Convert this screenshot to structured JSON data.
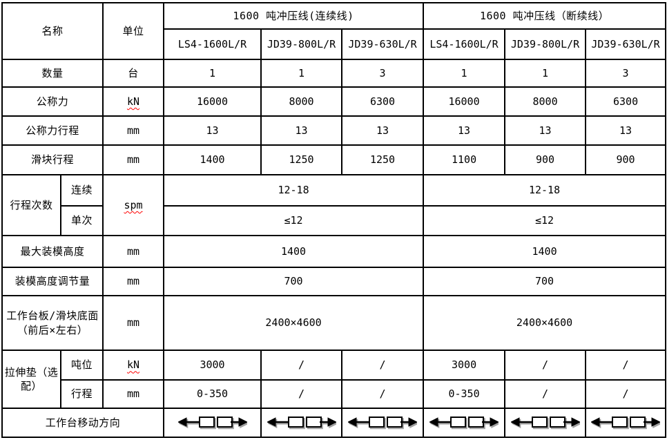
{
  "header": {
    "name_label": "名称",
    "unit_label": "单位",
    "groups": [
      {
        "label": "1600 吨冲压线(连续线)"
      },
      {
        "label": "1600 吨冲压线（断续线）"
      }
    ],
    "models": [
      "LS4-1600L/R",
      "JD39-800L/R",
      "JD39-630L/R",
      "LS4-1600L/R",
      "JD39-800L/R",
      "JD39-630L/R"
    ]
  },
  "rows": {
    "quantity": {
      "label": "数量",
      "unit": "台",
      "values": [
        "1",
        "1",
        "3",
        "1",
        "1",
        "3"
      ]
    },
    "nominal_force": {
      "label": "公称力",
      "unit": "kN",
      "values": [
        "16000",
        "8000",
        "6300",
        "16000",
        "8000",
        "6300"
      ]
    },
    "nominal_force_stroke": {
      "label": "公称力行程",
      "unit": "mm",
      "values": [
        "13",
        "13",
        "13",
        "13",
        "13",
        "13"
      ]
    },
    "slide_stroke": {
      "label": "滑块行程",
      "unit": "mm",
      "values": [
        "1400",
        "1250",
        "1250",
        "1100",
        "900",
        "900"
      ]
    },
    "stroke_rate": {
      "label": "行程次数",
      "unit": "spm",
      "sub": [
        {
          "label": "连续",
          "values": [
            "12-18",
            "12-18"
          ]
        },
        {
          "label": "单次",
          "values": [
            "≤12",
            "≤12"
          ]
        }
      ]
    },
    "max_die_height": {
      "label": "最大装模高度",
      "unit": "mm",
      "values": [
        "1400",
        "1400"
      ]
    },
    "die_height_adjustment": {
      "label": "装模高度调节量",
      "unit": "mm",
      "values": [
        "700",
        "700"
      ]
    },
    "bolster_slide_area": {
      "label": "工作台板/滑块底面（前后×左右）",
      "unit": "mm",
      "values": [
        "2400×4600",
        "2400×4600"
      ]
    },
    "draw_cushion": {
      "label": "拉伸垫（选配）",
      "sub": [
        {
          "label": "吨位",
          "unit": "kN",
          "values": [
            "3000",
            "/",
            "/",
            "3000",
            "/",
            "/"
          ]
        },
        {
          "label": "行程",
          "unit": "mm",
          "values": [
            "0-350",
            "/",
            "/",
            "0-350",
            "/",
            "/"
          ]
        }
      ]
    },
    "table_move_direction": {
      "label": "工作台移动方向",
      "icon": "bolster-move-direction-icon"
    }
  },
  "colors": {
    "border": "#000000",
    "background": "#ffffff",
    "text": "#000000",
    "spellcheck_underline": "#ff0000",
    "arrow_shadow": "#a0a0a0"
  }
}
